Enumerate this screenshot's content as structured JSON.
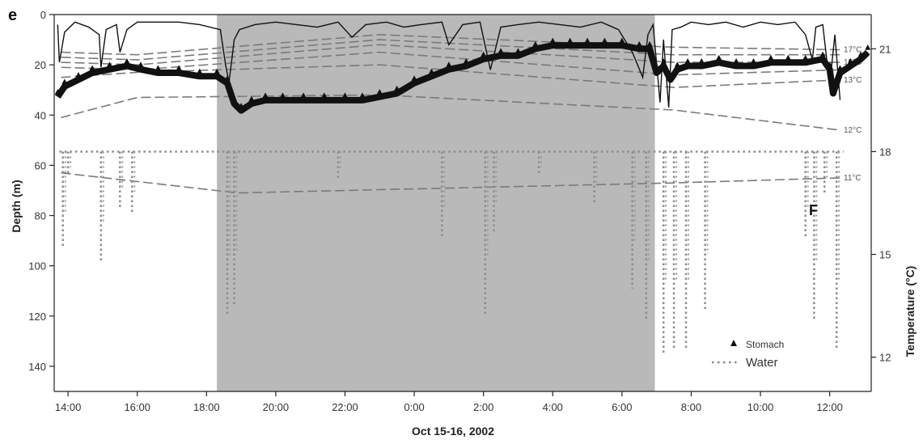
{
  "chart_data": {
    "type": "line",
    "panel_label": "e",
    "xlabel": "Oct 15-16, 2002",
    "ylabel_left": "Depth (m)",
    "ylabel_right": "Temperature (°C)",
    "x_range_hours": [
      13.6,
      37.2
    ],
    "y_left_range": [
      0,
      150
    ],
    "y_right_range": [
      11,
      22
    ],
    "x_ticks": [
      {
        "x": 14,
        "label": "14:00"
      },
      {
        "x": 16,
        "label": "16:00"
      },
      {
        "x": 18,
        "label": "18:00"
      },
      {
        "x": 20,
        "label": "20:00"
      },
      {
        "x": 22,
        "label": "22:00"
      },
      {
        "x": 24,
        "label": "0:00"
      },
      {
        "x": 26,
        "label": "2:00"
      },
      {
        "x": 28,
        "label": "4:00"
      },
      {
        "x": 30,
        "label": "6:00"
      },
      {
        "x": 32,
        "label": "8:00"
      },
      {
        "x": 34,
        "label": "10:00"
      },
      {
        "x": 36,
        "label": "12:00"
      }
    ],
    "y_left_ticks": [
      0,
      20,
      40,
      60,
      80,
      100,
      120,
      140
    ],
    "y_right_ticks": [
      12,
      15,
      18,
      21
    ],
    "night_shading": {
      "start": 18.3,
      "end": 30.95,
      "color": "#b9b9b9"
    },
    "annotation": "F",
    "legend": [
      {
        "label": "Stomach",
        "marker": "triangle"
      },
      {
        "label": "Water",
        "marker": "dotted"
      }
    ],
    "isotherms": [
      {
        "label": "17°C",
        "x": [
          13.8,
          16,
          23,
          31.5,
          36.3
        ],
        "depth": [
          15,
          16,
          8,
          13,
          14
        ]
      },
      {
        "label": null,
        "x": [
          13.8,
          16,
          23,
          31.5,
          36.3
        ],
        "depth": [
          17,
          18,
          10,
          16,
          16
        ]
      },
      {
        "label": "15°C",
        "x": [
          13.8,
          16,
          23,
          31.5,
          36.3
        ],
        "depth": [
          19,
          20,
          12,
          19,
          19
        ]
      },
      {
        "label": null,
        "x": [
          13.8,
          16,
          23,
          31.5,
          36.3
        ],
        "depth": [
          21,
          22,
          15,
          24,
          22
        ]
      },
      {
        "label": "13°C",
        "x": [
          13.8,
          16,
          23,
          31.5,
          36.3
        ],
        "depth": [
          25,
          23,
          20,
          29,
          26
        ]
      },
      {
        "label": "12°C",
        "x": [
          13.8,
          16,
          23,
          31.5,
          36.3
        ],
        "depth": [
          41,
          33,
          32,
          38,
          46
        ]
      },
      {
        "label": "11°C",
        "x": [
          13.8,
          18.9,
          31.5,
          36.3
        ],
        "depth": [
          63,
          71,
          67,
          65
        ]
      }
    ],
    "series": [
      {
        "name": "Stomach",
        "axis": "right",
        "x": [
          13.7,
          13.9,
          14.3,
          14.7,
          15.2,
          15.7,
          16.1,
          16.6,
          17.2,
          17.8,
          18.3,
          18.6,
          18.8,
          19.0,
          19.3,
          19.7,
          20.2,
          20.8,
          21.4,
          22.0,
          22.5,
          23.0,
          23.5,
          24.0,
          24.5,
          25.0,
          25.5,
          26.0,
          26.5,
          27.0,
          27.5,
          28.0,
          28.5,
          29.0,
          29.5,
          30.0,
          30.5,
          30.8,
          31.0,
          31.2,
          31.4,
          31.6,
          31.9,
          32.3,
          32.8,
          33.3,
          33.8,
          34.3,
          34.8,
          35.3,
          35.8,
          36.0,
          36.1,
          36.3,
          36.6,
          36.9,
          37.1
        ],
        "temperature": [
          19.6,
          19.9,
          20.1,
          20.3,
          20.4,
          20.5,
          20.4,
          20.3,
          20.3,
          20.2,
          20.2,
          20.0,
          19.4,
          19.2,
          19.4,
          19.5,
          19.5,
          19.5,
          19.5,
          19.5,
          19.5,
          19.6,
          19.7,
          20.0,
          20.2,
          20.4,
          20.5,
          20.7,
          20.8,
          20.8,
          21.0,
          21.1,
          21.1,
          21.1,
          21.1,
          21.1,
          21.0,
          21.0,
          20.3,
          20.5,
          20.1,
          20.4,
          20.5,
          20.5,
          20.6,
          20.5,
          20.5,
          20.6,
          20.6,
          20.6,
          20.7,
          20.4,
          19.7,
          20.3,
          20.5,
          20.7,
          20.9
        ]
      },
      {
        "name": "Water",
        "axis": "right",
        "baseline_temperature": 18.0,
        "dips": [
          {
            "x": 13.85,
            "min_temperature": 15.2
          },
          {
            "x": 14.0,
            "min_temperature": 17.3
          },
          {
            "x": 14.95,
            "min_temperature": 14.8
          },
          {
            "x": 15.5,
            "min_temperature": 16.3
          },
          {
            "x": 15.85,
            "min_temperature": 16.2
          },
          {
            "x": 18.6,
            "min_temperature": 13.2
          },
          {
            "x": 18.8,
            "min_temperature": 13.5
          },
          {
            "x": 21.8,
            "min_temperature": 17.2
          },
          {
            "x": 24.8,
            "min_temperature": 15.5
          },
          {
            "x": 26.05,
            "min_temperature": 13.2
          },
          {
            "x": 26.3,
            "min_temperature": 15.6
          },
          {
            "x": 27.6,
            "min_temperature": 17.3
          },
          {
            "x": 29.2,
            "min_temperature": 16.5
          },
          {
            "x": 30.3,
            "min_temperature": 14.0
          },
          {
            "x": 30.7,
            "min_temperature": 13.1
          },
          {
            "x": 31.2,
            "min_temperature": 12.1
          },
          {
            "x": 31.5,
            "min_temperature": 12.2
          },
          {
            "x": 31.85,
            "min_temperature": 12.2
          },
          {
            "x": 32.4,
            "min_temperature": 13.4
          },
          {
            "x": 35.3,
            "min_temperature": 15.5
          },
          {
            "x": 35.55,
            "min_temperature": 13.1
          },
          {
            "x": 35.85,
            "min_temperature": 16.8
          },
          {
            "x": 36.2,
            "min_temperature": 12.2
          }
        ]
      },
      {
        "name": "Depth",
        "axis": "left",
        "x": [
          13.7,
          13.75,
          13.9,
          14.2,
          14.6,
          14.9,
          14.95,
          15.1,
          15.4,
          15.5,
          15.7,
          16.0,
          16.6,
          17.2,
          17.8,
          18.4,
          18.55,
          18.65,
          18.8,
          18.95,
          19.4,
          20.0,
          20.6,
          21.2,
          21.8,
          22.2,
          22.6,
          23.2,
          23.7,
          24.2,
          24.8,
          25.0,
          25.4,
          25.9,
          26.2,
          26.5,
          27.0,
          27.6,
          28.2,
          28.8,
          29.4,
          29.9,
          30.3,
          30.6,
          30.75,
          30.9,
          31.1,
          31.2,
          31.35,
          31.45,
          31.7,
          32.0,
          32.5,
          33.0,
          33.5,
          34.0,
          34.5,
          35.0,
          35.3,
          35.5,
          35.6,
          35.8,
          36.0,
          36.15,
          36.3
        ],
        "depth": [
          4,
          19,
          7,
          3,
          5,
          8,
          21,
          6,
          4,
          15,
          6,
          3,
          3,
          3,
          4,
          6,
          20,
          27,
          10,
          6,
          4,
          3,
          4,
          5,
          3,
          9,
          4,
          3,
          5,
          4,
          3,
          12,
          4,
          3,
          22,
          5,
          4,
          3,
          4,
          5,
          3,
          6,
          15,
          25,
          8,
          4,
          35,
          10,
          37,
          6,
          5,
          3,
          4,
          3,
          5,
          3,
          4,
          3,
          8,
          18,
          5,
          4,
          28,
          8,
          34
        ]
      }
    ]
  }
}
